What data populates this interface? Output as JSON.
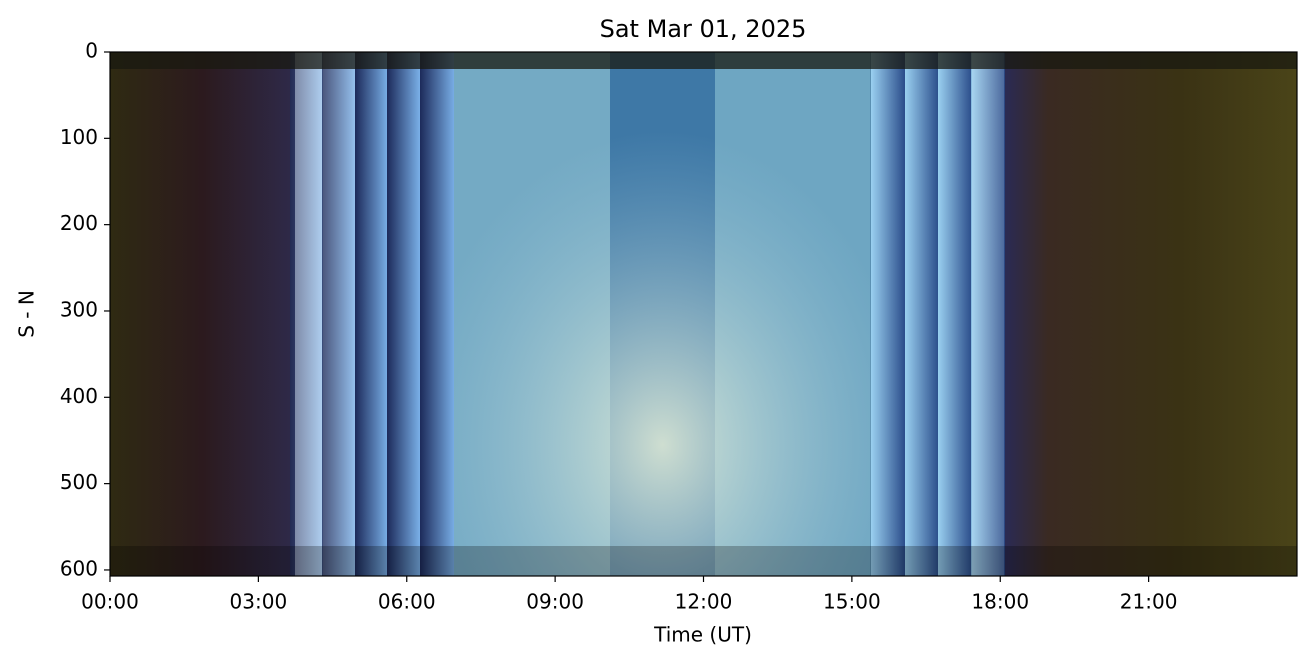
{
  "chart_data": {
    "type": "keogram",
    "title": "Sat Mar 01, 2025",
    "xlabel": "Time (UT)",
    "ylabel": "S - N",
    "xlim": [
      0,
      24
    ],
    "ylim": [
      607,
      0
    ],
    "xticks": [
      {
        "value": 0,
        "label": "00:00"
      },
      {
        "value": 3,
        "label": "03:00"
      },
      {
        "value": 6,
        "label": "06:00"
      },
      {
        "value": 9,
        "label": "09:00"
      },
      {
        "value": 12,
        "label": "12:00"
      },
      {
        "value": 15,
        "label": "15:00"
      },
      {
        "value": 18,
        "label": "18:00"
      },
      {
        "value": 21,
        "label": "21:00"
      }
    ],
    "yticks": [
      0,
      100,
      200,
      300,
      400,
      500,
      600
    ]
  }
}
